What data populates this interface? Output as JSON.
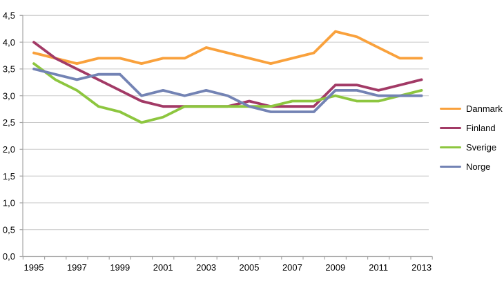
{
  "chart": {
    "background_color": "#FFFFFF",
    "axis_color": "#A6A6A6",
    "gridline_color": "#C9C9C9",
    "label_color": "#000000"
  },
  "chart_data": {
    "type": "line",
    "title": "",
    "x": [
      1995,
      1996,
      1997,
      1998,
      1999,
      2000,
      2001,
      2002,
      2003,
      2004,
      2005,
      2006,
      2007,
      2008,
      2009,
      2010,
      2011,
      2012,
      2013
    ],
    "x_axis_tick_labels": [
      "1995",
      "1997",
      "1999",
      "2001",
      "2003",
      "2005",
      "2007",
      "2009",
      "2011",
      "2013"
    ],
    "y_axis_tick_labels": [
      "0,0",
      "0,5",
      "1,0",
      "1,5",
      "2,0",
      "2,5",
      "3,0",
      "3,5",
      "4,0",
      "4,5"
    ],
    "ylim": [
      0,
      4.5
    ],
    "y_step": 0.5,
    "decimal_separator": ",",
    "grid": "horizontal",
    "legend_position": "right",
    "series": [
      {
        "name": "Danmark",
        "color": "#F9A13C",
        "values": [
          3.8,
          3.7,
          3.6,
          3.7,
          3.7,
          3.6,
          3.7,
          3.7,
          3.9,
          3.8,
          3.7,
          3.6,
          3.7,
          3.8,
          4.2,
          4.1,
          3.9,
          3.7,
          3.7
        ]
      },
      {
        "name": "Finland",
        "color": "#A23A66",
        "values": [
          4.0,
          3.7,
          3.5,
          3.3,
          3.1,
          2.9,
          2.8,
          2.8,
          2.8,
          2.8,
          2.9,
          2.8,
          2.8,
          2.8,
          3.2,
          3.2,
          3.1,
          3.2,
          3.3
        ]
      },
      {
        "name": "Sverige",
        "color": "#8DC63F",
        "values": [
          3.6,
          3.3,
          3.1,
          2.8,
          2.7,
          2.5,
          2.6,
          2.8,
          2.8,
          2.8,
          2.8,
          2.8,
          2.9,
          2.9,
          3.0,
          2.9,
          2.9,
          3.0,
          3.1
        ]
      },
      {
        "name": "Norge",
        "color": "#7383B4",
        "values": [
          3.5,
          3.4,
          3.3,
          3.4,
          3.4,
          3.0,
          3.1,
          3.0,
          3.1,
          3.0,
          2.8,
          2.7,
          2.7,
          2.7,
          3.1,
          3.1,
          3.0,
          3.0,
          3.0
        ]
      }
    ]
  }
}
